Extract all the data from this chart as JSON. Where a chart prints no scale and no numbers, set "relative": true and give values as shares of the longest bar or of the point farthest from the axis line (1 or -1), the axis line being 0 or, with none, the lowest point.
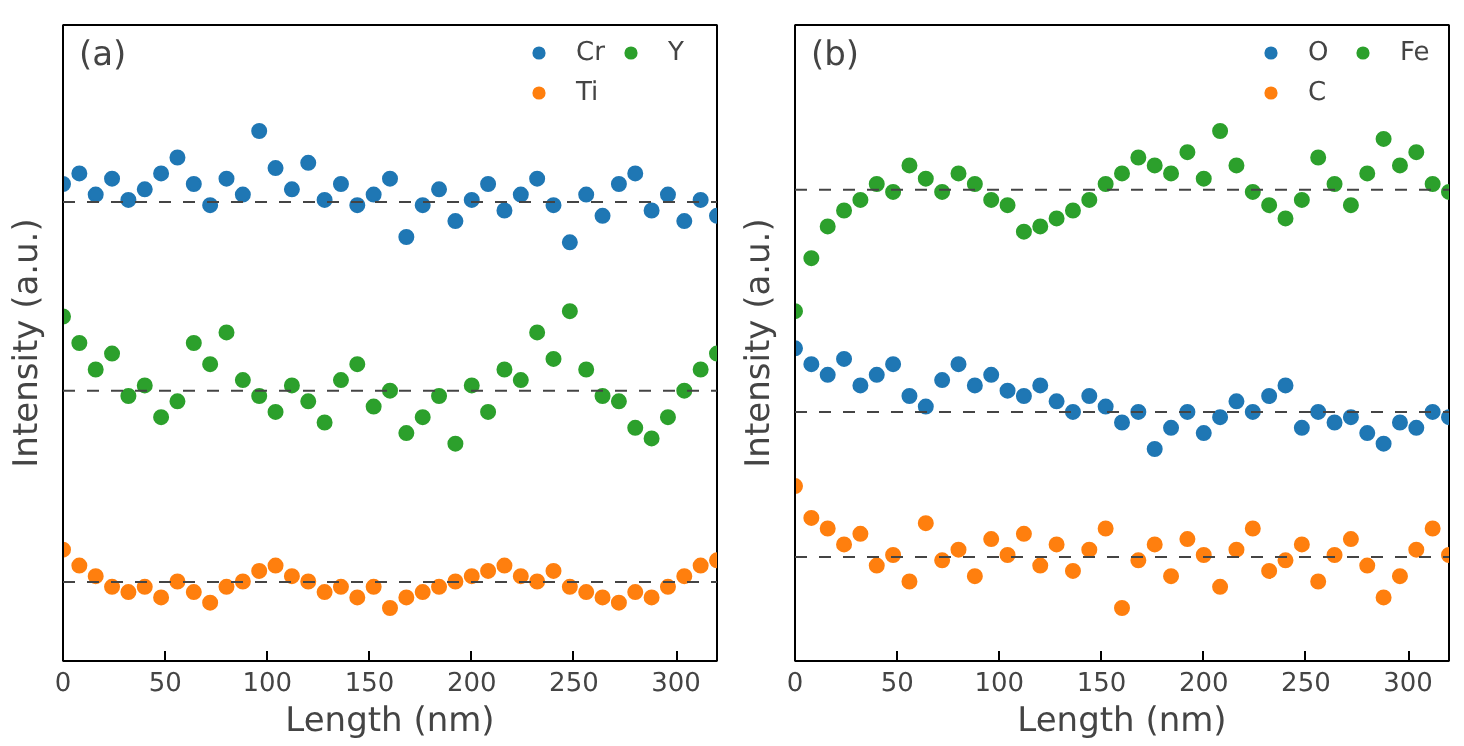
{
  "chart_data": [
    {
      "type": "scatter",
      "relative": true,
      "xlabel": "Length (nm)",
      "ylabel": "Intensity (a.u.)",
      "annotations": [
        "(a)"
      ],
      "x": [
        0,
        8,
        16,
        24,
        32,
        40,
        48,
        56,
        64,
        72,
        80,
        88,
        96,
        104,
        112,
        120,
        128,
        136,
        144,
        152,
        160,
        168,
        176,
        184,
        192,
        200,
        208,
        216,
        224,
        232,
        240,
        248,
        256,
        264,
        272,
        280,
        288,
        296,
        304,
        312,
        320
      ],
      "xlim": [
        0,
        320
      ],
      "xticks": [
        0,
        50,
        100,
        150,
        200,
        250,
        300
      ],
      "tick_labels": "x",
      "grid": false,
      "legend": "top right",
      "marker": "circle",
      "series": [
        {
          "name": "Cr",
          "color": "#1f77b4",
          "values": [
            0.9,
            0.92,
            0.88,
            0.91,
            0.87,
            0.89,
            0.92,
            0.95,
            0.9,
            0.86,
            0.91,
            0.88,
            1.0,
            0.93,
            0.89,
            0.94,
            0.87,
            0.9,
            0.86,
            0.88,
            0.91,
            0.8,
            0.86,
            0.89,
            0.83,
            0.87,
            0.9,
            0.85,
            0.88,
            0.91,
            0.86,
            0.79,
            0.88,
            0.84,
            0.9,
            0.92,
            0.85,
            0.88,
            0.83,
            0.87,
            0.84
          ]
        },
        {
          "name": "Ti",
          "color": "#ff7f0e",
          "values": [
            0.21,
            0.18,
            0.16,
            0.14,
            0.13,
            0.14,
            0.12,
            0.15,
            0.13,
            0.11,
            0.14,
            0.15,
            0.17,
            0.18,
            0.16,
            0.15,
            0.13,
            0.14,
            0.12,
            0.14,
            0.1,
            0.12,
            0.13,
            0.14,
            0.15,
            0.16,
            0.17,
            0.18,
            0.16,
            0.15,
            0.17,
            0.14,
            0.13,
            0.12,
            0.11,
            0.13,
            0.12,
            0.14,
            0.16,
            0.18,
            0.19
          ]
        },
        {
          "name": "Y",
          "color": "#2ca02c",
          "values": [
            0.65,
            0.6,
            0.55,
            0.58,
            0.5,
            0.52,
            0.46,
            0.49,
            0.6,
            0.56,
            0.62,
            0.53,
            0.5,
            0.47,
            0.52,
            0.49,
            0.45,
            0.53,
            0.56,
            0.48,
            0.51,
            0.43,
            0.46,
            0.5,
            0.41,
            0.52,
            0.47,
            0.55,
            0.53,
            0.62,
            0.57,
            0.66,
            0.55,
            0.5,
            0.49,
            0.44,
            0.42,
            0.46,
            0.51,
            0.55,
            0.58
          ]
        }
      ],
      "ref_lines": [
        {
          "axis": "y",
          "value": 0.866,
          "color": "#444444",
          "line_style": "dashed"
        },
        {
          "axis": "y",
          "value": 0.51,
          "color": "#444444",
          "line_style": "dashed"
        },
        {
          "axis": "y",
          "value": 0.149,
          "color": "#444444",
          "line_style": "dashed"
        }
      ]
    },
    {
      "type": "scatter",
      "relative": true,
      "xlabel": "Length (nm)",
      "ylabel": "Intensity (a.u.)",
      "annotations": [
        "(b)"
      ],
      "x": [
        0,
        8,
        16,
        24,
        32,
        40,
        48,
        56,
        64,
        72,
        80,
        88,
        96,
        104,
        112,
        120,
        128,
        136,
        144,
        152,
        160,
        168,
        176,
        184,
        192,
        200,
        208,
        216,
        224,
        232,
        240,
        248,
        256,
        264,
        272,
        280,
        288,
        296,
        304,
        312,
        320
      ],
      "xlim": [
        0,
        320
      ],
      "xticks": [
        0,
        50,
        100,
        150,
        200,
        250,
        300
      ],
      "tick_labels": "x",
      "grid": false,
      "legend": "top right",
      "marker": "circle",
      "series": [
        {
          "name": "O",
          "color": "#1f77b4",
          "values": [
            0.59,
            0.56,
            0.54,
            0.57,
            0.52,
            0.54,
            0.56,
            0.5,
            0.48,
            0.53,
            0.56,
            0.52,
            0.54,
            0.51,
            0.5,
            0.52,
            0.49,
            0.47,
            0.5,
            0.48,
            0.45,
            0.47,
            0.4,
            0.44,
            0.47,
            0.43,
            0.46,
            0.49,
            0.47,
            0.5,
            0.52,
            0.44,
            0.47,
            0.45,
            0.46,
            0.43,
            0.41,
            0.45,
            0.44,
            0.47,
            0.46
          ]
        },
        {
          "name": "C",
          "color": "#ff7f0e",
          "values": [
            0.33,
            0.27,
            0.25,
            0.22,
            0.24,
            0.18,
            0.2,
            0.15,
            0.26,
            0.19,
            0.21,
            0.16,
            0.23,
            0.2,
            0.24,
            0.18,
            0.22,
            0.17,
            0.21,
            0.25,
            0.1,
            0.19,
            0.22,
            0.16,
            0.23,
            0.2,
            0.14,
            0.21,
            0.25,
            0.17,
            0.19,
            0.22,
            0.15,
            0.2,
            0.23,
            0.18,
            0.12,
            0.16,
            0.21,
            0.25,
            0.2
          ]
        },
        {
          "name": "Fe",
          "color": "#2ca02c",
          "values": [
            0.66,
            0.76,
            0.82,
            0.85,
            0.87,
            0.9,
            0.885,
            0.935,
            0.91,
            0.885,
            0.92,
            0.9,
            0.87,
            0.86,
            0.81,
            0.82,
            0.835,
            0.85,
            0.87,
            0.9,
            0.92,
            0.95,
            0.935,
            0.92,
            0.96,
            0.91,
            1.0,
            0.935,
            0.885,
            0.86,
            0.835,
            0.87,
            0.95,
            0.9,
            0.86,
            0.92,
            0.985,
            0.935,
            0.96,
            0.9,
            0.885
          ]
        }
      ],
      "ref_lines": [
        {
          "axis": "y",
          "value": 0.889,
          "color": "#444444",
          "line_style": "dashed"
        },
        {
          "axis": "y",
          "value": 0.47,
          "color": "#444444",
          "line_style": "dashed"
        },
        {
          "axis": "y",
          "value": 0.196,
          "color": "#444444",
          "line_style": "dashed"
        }
      ]
    }
  ]
}
